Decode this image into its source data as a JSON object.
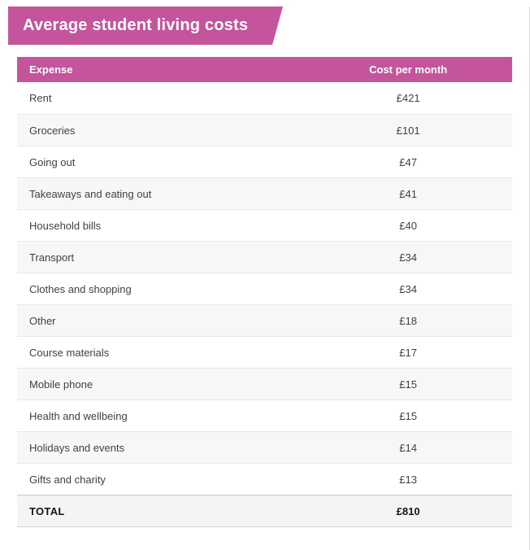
{
  "colors": {
    "accent": "#c4549b",
    "stripe": "#f7f7f7",
    "total_bg": "#f4f4f4"
  },
  "banner": {
    "title": "Average student living costs"
  },
  "table": {
    "columns": [
      {
        "label": "Expense"
      },
      {
        "label": "Cost per month"
      }
    ],
    "rows": [
      {
        "expense": "Rent",
        "cost": "£421"
      },
      {
        "expense": "Groceries",
        "cost": "£101"
      },
      {
        "expense": "Going out",
        "cost": "£47"
      },
      {
        "expense": "Takeaways and eating out",
        "cost": "£41"
      },
      {
        "expense": "Household bills",
        "cost": "£40"
      },
      {
        "expense": "Transport",
        "cost": "£34"
      },
      {
        "expense": "Clothes and shopping",
        "cost": "£34"
      },
      {
        "expense": "Other",
        "cost": "£18"
      },
      {
        "expense": "Course materials",
        "cost": "£17"
      },
      {
        "expense": "Mobile phone",
        "cost": "£15"
      },
      {
        "expense": "Health and wellbeing",
        "cost": "£15"
      },
      {
        "expense": "Holidays and events",
        "cost": "£14"
      },
      {
        "expense": "Gifts and charity",
        "cost": "£13"
      }
    ],
    "total": {
      "expense": "TOTAL",
      "cost": "£810"
    }
  },
  "chart_data": {
    "type": "table",
    "title": "Average student living costs",
    "columns": [
      "Expense",
      "Cost per month"
    ],
    "categories": [
      "Rent",
      "Groceries",
      "Going out",
      "Takeaways and eating out",
      "Household bills",
      "Transport",
      "Clothes and shopping",
      "Other",
      "Course materials",
      "Mobile phone",
      "Health and wellbeing",
      "Holidays and events",
      "Gifts and charity"
    ],
    "values": [
      421,
      101,
      47,
      41,
      40,
      34,
      34,
      18,
      17,
      15,
      15,
      14,
      13
    ],
    "currency_symbol": "£",
    "total_label": "TOTAL",
    "total_value": 810
  }
}
